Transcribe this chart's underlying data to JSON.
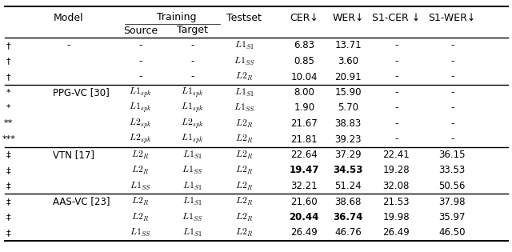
{
  "col_headers": [
    "",
    "Model",
    "Source",
    "Target",
    "Testset",
    "CER↓",
    "WER↓",
    "S1-CER ↓",
    "S1-WER↓"
  ],
  "training_header": "Training",
  "rows": [
    {
      "symbol": "†",
      "model": "-",
      "source": "-",
      "target": "-",
      "testset": "L1_{S1}",
      "cer": "6.83",
      "wer": "13.71",
      "s1cer": "-",
      "s1wer": "-",
      "bold_cer": false,
      "bold_wer": false
    },
    {
      "symbol": "†",
      "model": "",
      "source": "-",
      "target": "-",
      "testset": "L1_{SS}",
      "cer": "0.85",
      "wer": "3.60",
      "s1cer": "-",
      "s1wer": "-",
      "bold_cer": false,
      "bold_wer": false
    },
    {
      "symbol": "†",
      "model": "",
      "source": "-",
      "target": "-",
      "testset": "L2_R",
      "cer": "10.04",
      "wer": "20.91",
      "s1cer": "-",
      "s1wer": "-",
      "bold_cer": false,
      "bold_wer": false
    },
    {
      "symbol": "*",
      "model": "PPG-VC [30]",
      "source": "L1_{spk}",
      "target": "L1_{spk}",
      "testset": "L1_{S1}",
      "cer": "8.00",
      "wer": "15.90",
      "s1cer": "-",
      "s1wer": "-",
      "bold_cer": false,
      "bold_wer": false
    },
    {
      "symbol": "*",
      "model": "",
      "source": "L1_{spk}",
      "target": "L1_{spk}",
      "testset": "L1_{SS}",
      "cer": "1.90",
      "wer": "5.70",
      "s1cer": "-",
      "s1wer": "-",
      "bold_cer": false,
      "bold_wer": false
    },
    {
      "symbol": "**",
      "model": "",
      "source": "L2_{spk}",
      "target": "L2_{spk}",
      "testset": "L2_R",
      "cer": "21.67",
      "wer": "38.83",
      "s1cer": "-",
      "s1wer": "-",
      "bold_cer": false,
      "bold_wer": false
    },
    {
      "symbol": "***",
      "model": "",
      "source": "L2_{spk}",
      "target": "L1_{spk}",
      "testset": "L2_R",
      "cer": "21.81",
      "wer": "39.23",
      "s1cer": "-",
      "s1wer": "-",
      "bold_cer": false,
      "bold_wer": false
    },
    {
      "symbol": "‡",
      "model": "VTN [17]",
      "source": "L2_R",
      "target": "L1_{S1}",
      "testset": "L2_R",
      "cer": "22.64",
      "wer": "37.29",
      "s1cer": "22.41",
      "s1wer": "36.15",
      "bold_cer": false,
      "bold_wer": false
    },
    {
      "symbol": "‡",
      "model": "",
      "source": "L2_R",
      "target": "L1_{SS}",
      "testset": "L2_R",
      "cer": "19.47",
      "wer": "34.53",
      "s1cer": "19.28",
      "s1wer": "33.53",
      "bold_cer": true,
      "bold_wer": true
    },
    {
      "symbol": "‡",
      "model": "",
      "source": "L1_{SS}",
      "target": "L1_{S1}",
      "testset": "L2_R",
      "cer": "32.21",
      "wer": "51.24",
      "s1cer": "32.08",
      "s1wer": "50.56",
      "bold_cer": false,
      "bold_wer": false
    },
    {
      "symbol": "‡",
      "model": "AAS-VC [23]",
      "source": "L2_R",
      "target": "L1_{S1}",
      "testset": "L2_R",
      "cer": "21.60",
      "wer": "38.68",
      "s1cer": "21.53",
      "s1wer": "37.98",
      "bold_cer": false,
      "bold_wer": false
    },
    {
      "symbol": "‡",
      "model": "",
      "source": "L2_R",
      "target": "L1_{SS}",
      "testset": "L2_R",
      "cer": "20.44",
      "wer": "36.74",
      "s1cer": "19.98",
      "s1wer": "35.97",
      "bold_cer": true,
      "bold_wer": true
    },
    {
      "symbol": "‡",
      "model": "",
      "source": "L1_{SS}",
      "target": "L1_{S1}",
      "testset": "L2_R",
      "cer": "26.49",
      "wer": "46.76",
      "s1cer": "26.49",
      "s1wer": "46.50",
      "bold_cer": false,
      "bold_wer": false
    }
  ],
  "section_separators": [
    3,
    7,
    10
  ],
  "bg_color": "#ffffff",
  "text_color": "#000000",
  "font_size": 8.5
}
